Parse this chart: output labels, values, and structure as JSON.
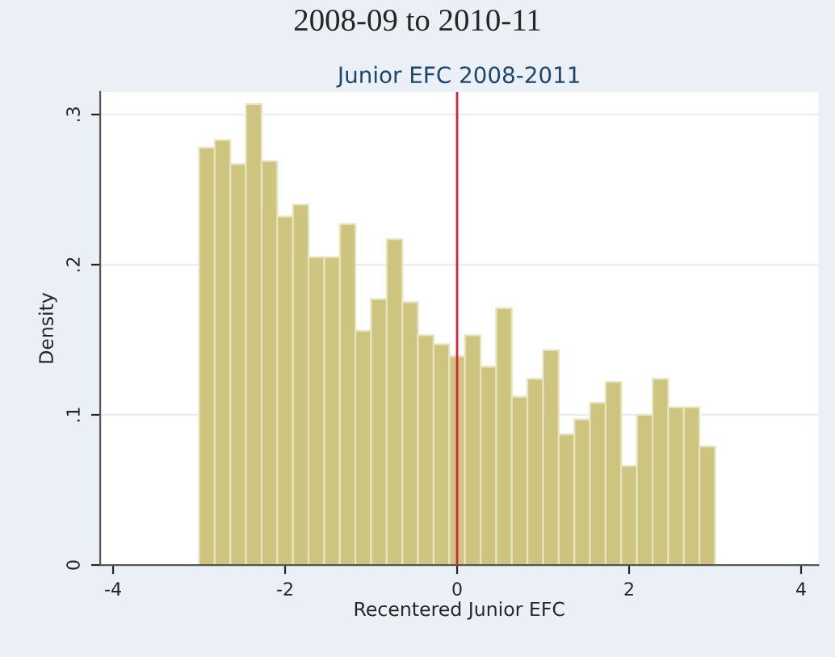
{
  "chart_data": {
    "type": "histogram",
    "title": "2008-09 to 2010-11",
    "subtitle": "Junior EFC 2008-2011",
    "xlabel": "Recentered Junior EFC",
    "ylabel": "Density",
    "bins": [
      -3.0,
      -2.818,
      -2.636,
      -2.455,
      -2.273,
      -2.091,
      -1.909,
      -1.727,
      -1.545,
      -1.364,
      -1.182,
      -1.0,
      -0.818,
      -0.636,
      -0.455,
      -0.273,
      -0.091,
      0.091,
      0.273,
      0.455,
      0.636,
      0.818,
      1.0,
      1.182,
      1.364,
      1.545,
      1.727,
      1.909,
      2.091,
      2.273,
      2.455,
      2.636,
      2.818,
      3.0
    ],
    "values": [
      0.278,
      0.283,
      0.267,
      0.307,
      0.269,
      0.232,
      0.24,
      0.205,
      0.205,
      0.227,
      0.156,
      0.177,
      0.217,
      0.175,
      0.153,
      0.147,
      0.139,
      0.153,
      0.132,
      0.171,
      0.112,
      0.124,
      0.143,
      0.087,
      0.097,
      0.108,
      0.122,
      0.066,
      0.1,
      0.124,
      0.105,
      0.105,
      0.079
    ],
    "color": "#cdc47f",
    "xlim": [
      -4.15,
      4.2
    ],
    "ylim": [
      0,
      0.315
    ],
    "xticks": [
      -4,
      -2,
      0,
      2,
      4
    ],
    "yticks": [
      0,
      {
        "value": 0.1,
        "label": ".1"
      },
      {
        "value": 0.2,
        "label": ".2"
      },
      {
        "value": 0.3,
        "label": ".3"
      }
    ],
    "ref_lines": [
      {
        "axis": "x",
        "value": 0,
        "color": "#d6213f"
      }
    ],
    "grid": "y"
  }
}
